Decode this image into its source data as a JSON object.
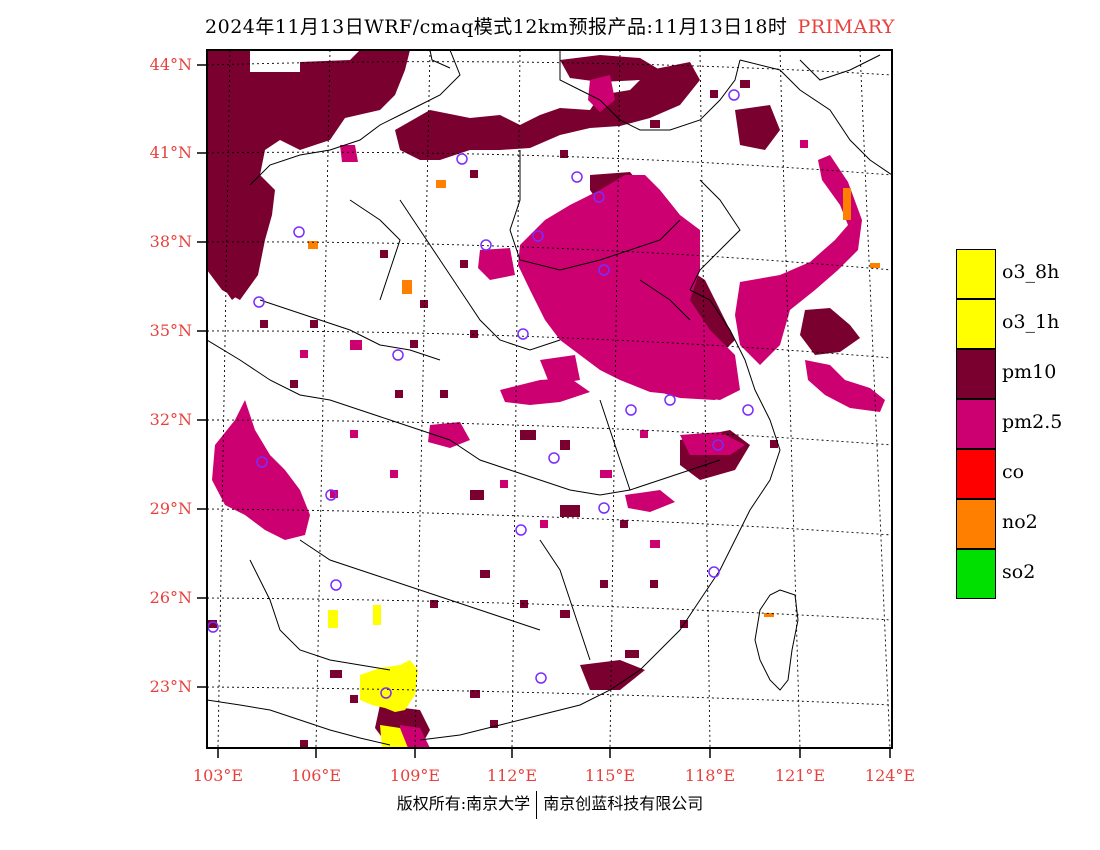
{
  "title": {
    "main": "2024年11月13日WRF/cmaq模式12km预报产品:11月13日18时",
    "tag": "PRIMARY",
    "tag_color": "#e8403c"
  },
  "axes": {
    "lat_labels": [
      "44°N",
      "41°N",
      "38°N",
      "35°N",
      "32°N",
      "29°N",
      "26°N",
      "23°N"
    ],
    "lon_labels": [
      "103°E",
      "106°E",
      "109°E",
      "112°E",
      "115°E",
      "118°E",
      "121°E",
      "124°E"
    ],
    "label_color": "#e8403c"
  },
  "legend": [
    {
      "label": "o3_8h",
      "color": "#ffff00"
    },
    {
      "label": "o3_1h",
      "color": "#ffff00"
    },
    {
      "label": "pm10",
      "color": "#7a0030"
    },
    {
      "label": "pm2.5",
      "color": "#cc0070"
    },
    {
      "label": "co",
      "color": "#ff0000"
    },
    {
      "label": "no2",
      "color": "#ff7f00"
    },
    {
      "label": "so2",
      "color": "#00e000"
    }
  ],
  "footer": {
    "left": "版权所有:南京大学",
    "right": "南京创蓝科技有限公司"
  }
}
